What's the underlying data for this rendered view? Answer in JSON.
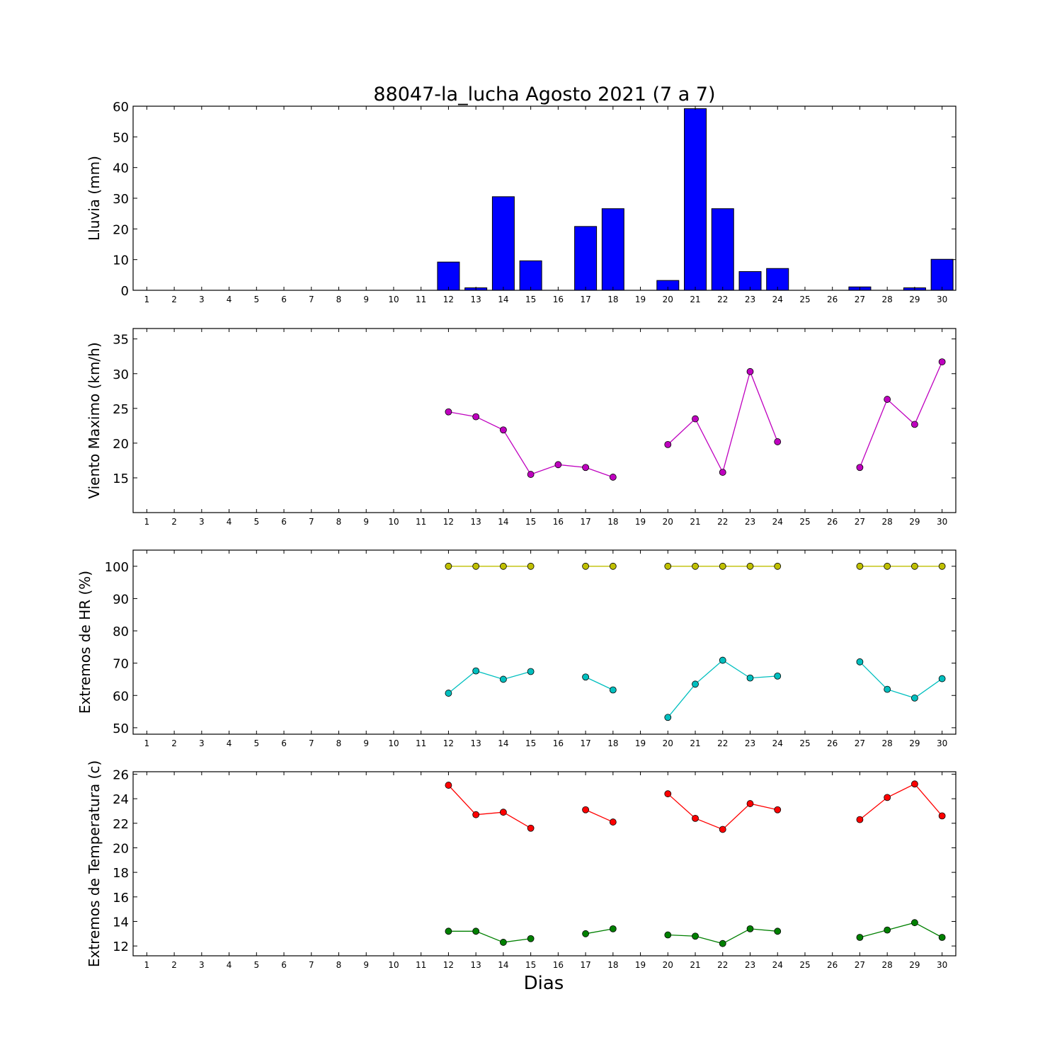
{
  "title": "88047-la_lucha Agosto 2021  (7 a 7)",
  "xlabel": "Dias",
  "chart_data": [
    {
      "type": "bar",
      "id": "lluvia",
      "ylabel": "Lluvia (mm)",
      "ylim": [
        0,
        60
      ],
      "yticks": [
        0,
        10,
        20,
        30,
        40,
        50,
        60
      ],
      "x": [
        1,
        2,
        3,
        4,
        5,
        6,
        7,
        8,
        9,
        10,
        11,
        12,
        13,
        14,
        15,
        16,
        17,
        18,
        19,
        20,
        21,
        22,
        23,
        24,
        25,
        26,
        27,
        28,
        29,
        30
      ],
      "values": [
        0,
        0,
        0,
        0,
        0,
        0,
        0,
        0,
        0,
        0,
        0,
        9.2,
        0.8,
        30.5,
        9.6,
        0,
        20.8,
        26.6,
        0,
        3.2,
        59.2,
        26.6,
        6.1,
        7.1,
        0,
        0,
        1.1,
        0,
        0.8,
        10.1
      ],
      "color": "#0000ff"
    },
    {
      "type": "line",
      "id": "viento",
      "ylabel": "Viento Maximo (km/h)",
      "ylim": [
        10,
        36.5
      ],
      "yticks": [
        15,
        20,
        25,
        30,
        35
      ],
      "x": [
        1,
        2,
        3,
        4,
        5,
        6,
        7,
        8,
        9,
        10,
        11,
        12,
        13,
        14,
        15,
        16,
        17,
        18,
        19,
        20,
        21,
        22,
        23,
        24,
        25,
        26,
        27,
        28,
        29,
        30
      ],
      "series": [
        {
          "color": "#bf00bf",
          "values": [
            null,
            null,
            null,
            null,
            null,
            null,
            null,
            null,
            null,
            null,
            null,
            24.5,
            23.8,
            21.9,
            15.5,
            16.9,
            16.5,
            15.1,
            null,
            19.8,
            23.5,
            15.8,
            30.3,
            20.2,
            null,
            null,
            16.5,
            26.3,
            22.7,
            31.7
          ]
        }
      ]
    },
    {
      "type": "line",
      "id": "humedad",
      "ylabel": "Extremos de HR (%)",
      "ylim": [
        48,
        105
      ],
      "yticks": [
        50,
        60,
        70,
        80,
        90,
        100
      ],
      "x": [
        1,
        2,
        3,
        4,
        5,
        6,
        7,
        8,
        9,
        10,
        11,
        12,
        13,
        14,
        15,
        16,
        17,
        18,
        19,
        20,
        21,
        22,
        23,
        24,
        25,
        26,
        27,
        28,
        29,
        30
      ],
      "series": [
        {
          "color": "#bfbf00",
          "values": [
            null,
            null,
            null,
            null,
            null,
            null,
            null,
            null,
            null,
            null,
            null,
            100,
            100,
            100,
            100,
            null,
            100,
            100,
            null,
            100,
            100,
            100,
            100,
            100,
            null,
            null,
            100,
            100,
            100,
            100
          ]
        },
        {
          "color": "#00bfbf",
          "values": [
            null,
            null,
            null,
            null,
            null,
            null,
            null,
            null,
            null,
            null,
            null,
            60.7,
            67.6,
            65.0,
            67.4,
            null,
            65.7,
            61.7,
            null,
            53.2,
            63.5,
            70.9,
            65.4,
            66.0,
            null,
            null,
            70.4,
            61.9,
            59.2,
            65.2
          ]
        }
      ]
    },
    {
      "type": "line",
      "id": "temperatura",
      "ylabel": "Extremos de Temperatura (c)",
      "ylim": [
        11.2,
        26.2
      ],
      "yticks": [
        12,
        14,
        16,
        18,
        20,
        22,
        24,
        26
      ],
      "x": [
        1,
        2,
        3,
        4,
        5,
        6,
        7,
        8,
        9,
        10,
        11,
        12,
        13,
        14,
        15,
        16,
        17,
        18,
        19,
        20,
        21,
        22,
        23,
        24,
        25,
        26,
        27,
        28,
        29,
        30
      ],
      "series": [
        {
          "color": "#ff0000",
          "values": [
            null,
            null,
            null,
            null,
            null,
            null,
            null,
            null,
            null,
            null,
            null,
            25.1,
            22.7,
            22.9,
            21.6,
            null,
            23.1,
            22.1,
            null,
            24.4,
            22.4,
            21.5,
            23.6,
            23.1,
            null,
            null,
            22.3,
            24.1,
            25.2,
            22.6
          ]
        },
        {
          "color": "#008000",
          "values": [
            null,
            null,
            null,
            null,
            null,
            null,
            null,
            null,
            null,
            null,
            null,
            13.2,
            13.2,
            12.3,
            12.6,
            null,
            13.0,
            13.4,
            null,
            12.9,
            12.8,
            12.2,
            13.4,
            13.2,
            null,
            null,
            12.7,
            13.3,
            13.9,
            12.7
          ]
        }
      ]
    }
  ]
}
